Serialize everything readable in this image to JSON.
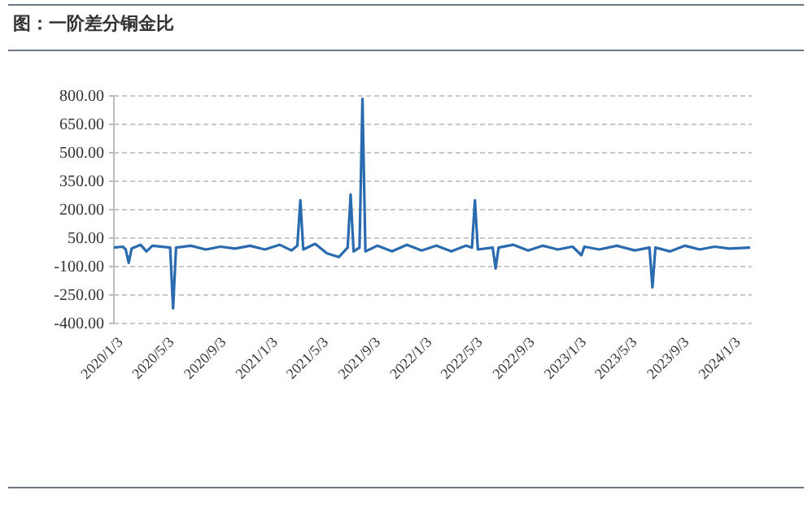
{
  "chart_data": {
    "type": "line",
    "title": "图：一阶差分铜金比",
    "x": [
      "2020-01-03",
      "2020-01-24",
      "2020-01-31",
      "2020-02-07",
      "2020-02-14",
      "2020-03-06",
      "2020-03-20",
      "2020-04-03",
      "2020-05-15",
      "2020-05-22",
      "2020-05-29",
      "2020-07-03",
      "2020-08-07",
      "2020-09-11",
      "2020-10-16",
      "2020-11-20",
      "2020-12-25",
      "2021-01-29",
      "2021-02-26",
      "2021-03-12",
      "2021-03-19",
      "2021-03-26",
      "2021-04-23",
      "2021-05-21",
      "2021-06-18",
      "2021-07-09",
      "2021-07-16",
      "2021-07-23",
      "2021-08-06",
      "2021-08-13",
      "2021-08-20",
      "2021-09-17",
      "2021-10-22",
      "2021-11-26",
      "2021-12-31",
      "2022-02-04",
      "2022-03-11",
      "2022-04-15",
      "2022-04-29",
      "2022-05-06",
      "2022-05-13",
      "2022-06-17",
      "2022-06-24",
      "2022-07-01",
      "2022-08-05",
      "2022-09-09",
      "2022-10-14",
      "2022-11-18",
      "2022-12-23",
      "2023-01-13",
      "2023-01-20",
      "2023-02-24",
      "2023-04-07",
      "2023-05-19",
      "2023-06-23",
      "2023-06-30",
      "2023-07-07",
      "2023-08-11",
      "2023-09-15",
      "2023-10-20",
      "2023-11-24",
      "2023-12-29",
      "2024-02-16"
    ],
    "series": [
      {
        "color": "#2a6bb0",
        "values": [
          0,
          5,
          -10,
          -80,
          -5,
          15,
          -20,
          10,
          0,
          -320,
          0,
          10,
          -10,
          5,
          -5,
          10,
          -10,
          15,
          -15,
          10,
          250,
          -10,
          20,
          -30,
          -50,
          0,
          280,
          -20,
          0,
          785,
          -20,
          10,
          -20,
          15,
          -15,
          10,
          -20,
          10,
          0,
          250,
          -10,
          0,
          -110,
          0,
          15,
          -15,
          10,
          -10,
          5,
          -40,
          5,
          -10,
          10,
          -15,
          0,
          -210,
          0,
          -20,
          10,
          -10,
          5,
          -5,
          0
        ]
      }
    ],
    "xlim": [
      "2020-01-03",
      "2024-02-20"
    ],
    "xticks": [
      {
        "value": "2020-01-03",
        "label": "2020/1/3"
      },
      {
        "value": "2020-05-03",
        "label": "2020/5/3"
      },
      {
        "value": "2020-09-03",
        "label": "2020/9/3"
      },
      {
        "value": "2021-01-03",
        "label": "2021/1/3"
      },
      {
        "value": "2021-05-03",
        "label": "2021/5/3"
      },
      {
        "value": "2021-09-03",
        "label": "2021/9/3"
      },
      {
        "value": "2022-01-03",
        "label": "2022/1/3"
      },
      {
        "value": "2022-05-03",
        "label": "2022/5/3"
      },
      {
        "value": "2022-09-03",
        "label": "2022/9/3"
      },
      {
        "value": "2023-01-03",
        "label": "2023/1/3"
      },
      {
        "value": "2023-05-03",
        "label": "2023/5/3"
      },
      {
        "value": "2023-09-03",
        "label": "2023/9/3"
      },
      {
        "value": "2024-01-03",
        "label": "2024/1/3"
      }
    ],
    "ylim": [
      -400,
      800
    ],
    "yticks": [
      {
        "value": -400,
        "label": "-400.00"
      },
      {
        "value": -250,
        "label": "-250.00"
      },
      {
        "value": -100,
        "label": "-100.00"
      },
      {
        "value": 50,
        "label": "50.00"
      },
      {
        "value": 200,
        "label": "200.00"
      },
      {
        "value": 350,
        "label": "350.00"
      },
      {
        "value": 500,
        "label": "500.00"
      },
      {
        "value": 650,
        "label": "650.00"
      },
      {
        "value": 800,
        "label": "800.00"
      }
    ],
    "grid": "y",
    "marker": "none",
    "line_style": "solid"
  }
}
